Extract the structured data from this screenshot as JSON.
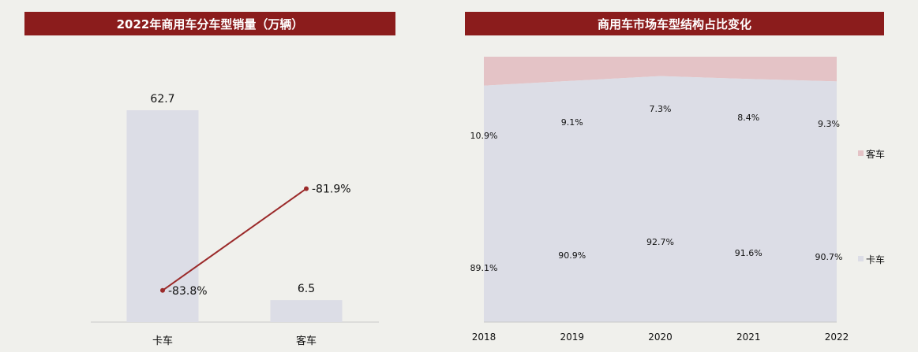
{
  "left_chart": {
    "title": "2022年商用车分车型销量（万辆）",
    "categories": [
      "卡车",
      "客车"
    ],
    "values": [
      62.7,
      6.5
    ],
    "value_labels": [
      "62.7",
      "6.5"
    ],
    "growth": [
      -83.8,
      -81.9
    ],
    "growth_labels": [
      "-83.8%",
      "-81.9%"
    ]
  },
  "right_chart": {
    "title": "商用车市场车型结构占比变化",
    "years": [
      "2018",
      "2019",
      "2020",
      "2021",
      "2022"
    ],
    "series": [
      {
        "name": "卡车",
        "values": [
          89.1,
          90.9,
          92.7,
          91.6,
          90.7
        ],
        "labels": [
          "89.1%",
          "90.9%",
          "92.7%",
          "91.6%",
          "90.7%"
        ]
      },
      {
        "name": "客车",
        "values": [
          10.9,
          9.1,
          7.3,
          8.4,
          9.3
        ],
        "labels": [
          "10.9%",
          "9.1%",
          "7.3%",
          "8.4%",
          "9.3%"
        ]
      }
    ]
  },
  "chart_data": [
    {
      "type": "bar",
      "title": "2022年商用车分车型销量（万辆）",
      "categories": [
        "卡车",
        "客车"
      ],
      "values": [
        62.7,
        6.5
      ],
      "overlay_line": {
        "values": [
          -83.8,
          -81.9
        ],
        "unit": "%"
      }
    },
    {
      "type": "area",
      "title": "商用车市场车型结构占比变化",
      "x": [
        "2018",
        "2019",
        "2020",
        "2021",
        "2022"
      ],
      "series": [
        {
          "name": "卡车",
          "values": [
            89.1,
            90.9,
            92.7,
            91.6,
            90.7
          ]
        },
        {
          "name": "客车",
          "values": [
            10.9,
            9.1,
            7.3,
            8.4,
            9.3
          ]
        }
      ],
      "legend": "right"
    }
  ],
  "colors": {
    "title_bg": "#8b1c1c",
    "bar": "#dcdde6",
    "line": "#9b2a2a",
    "truck_area": "#dcdde6",
    "bus_area": "#e4c3c6"
  }
}
